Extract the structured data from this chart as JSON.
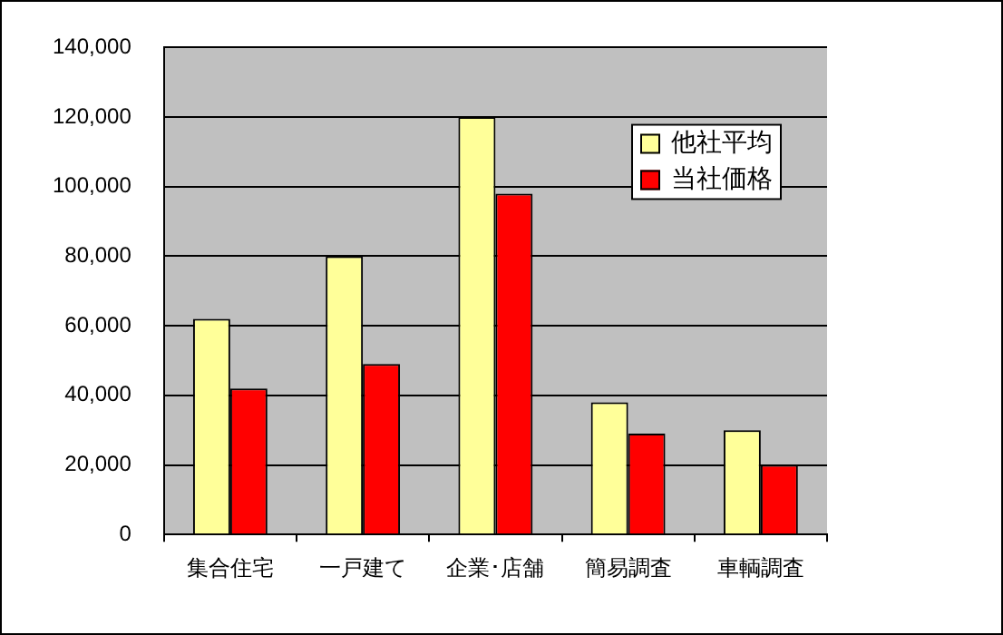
{
  "chart_data": {
    "type": "bar",
    "categories": [
      "集合住宅",
      "一戸建て",
      "企業･店舗",
      "簡易調査",
      "車輌調査"
    ],
    "series": [
      {
        "name": "他社平均",
        "color": "#ffff99",
        "values": [
          62000,
          80000,
          120000,
          38000,
          30000
        ]
      },
      {
        "name": "当社価格",
        "color": "#ff0000",
        "values": [
          42000,
          49000,
          98000,
          29000,
          20000
        ]
      }
    ],
    "ylim": [
      0,
      140000
    ],
    "yticks": [
      {
        "value": 0,
        "label": "0"
      },
      {
        "value": 20000,
        "label": "20,000"
      },
      {
        "value": 40000,
        "label": "40,000"
      },
      {
        "value": 60000,
        "label": "60,000"
      },
      {
        "value": 80000,
        "label": "80,000"
      },
      {
        "value": 100000,
        "label": "100,000"
      },
      {
        "value": 120000,
        "label": "120,000"
      },
      {
        "value": 140000,
        "label": "140,000"
      }
    ],
    "grid": "y",
    "legend": "top right"
  }
}
